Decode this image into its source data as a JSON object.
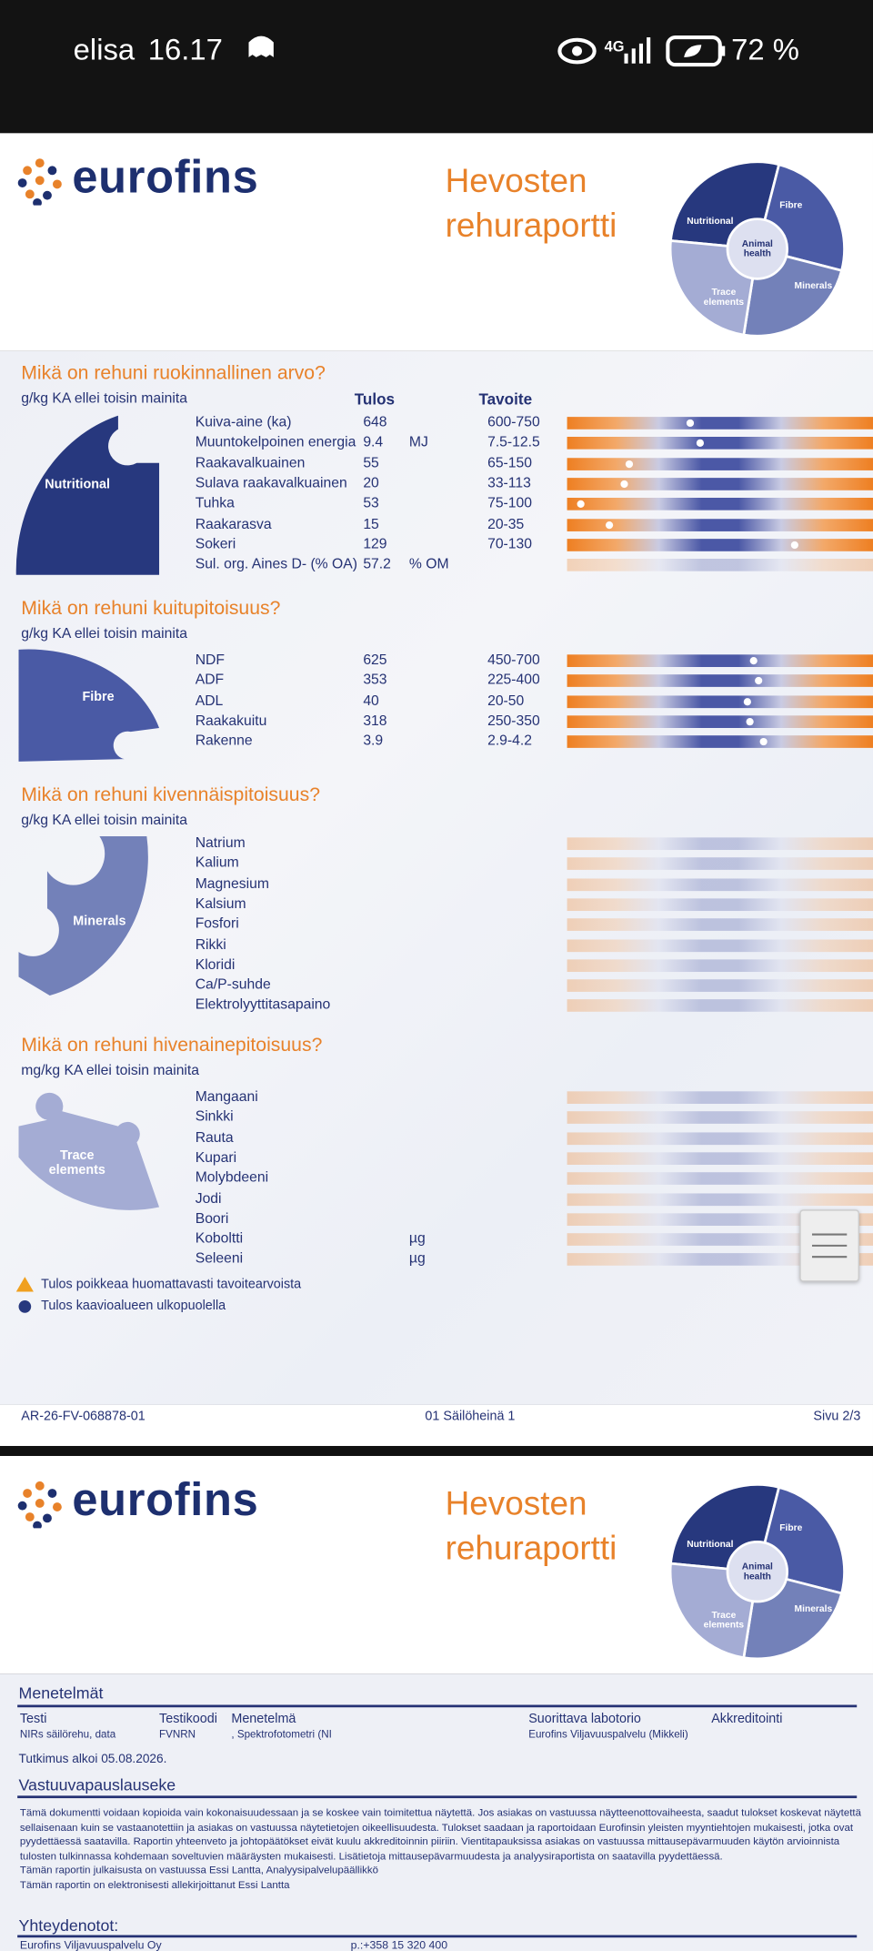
{
  "status_bar": {
    "carrier": "elisa",
    "time": "16.17",
    "network": "4G",
    "battery": "72 %"
  },
  "header": {
    "logo": "eurofins",
    "title_lines": [
      "Hevosten",
      "rehuraportti"
    ],
    "wheel": {
      "nutritional": "Nutritional",
      "fibre": "Fibre",
      "minerals": "Minerals",
      "trace": "Trace elements",
      "center": "Animal health"
    }
  },
  "page1": {
    "columns": {
      "result": "Tulos",
      "target": "Tavoite"
    },
    "sections": [
      {
        "title": "Mikä on rehuni ruokinnallinen arvo?",
        "note": "g/kg KA ellei toisin mainita",
        "segment": "Nutritional",
        "rows": [
          {
            "name": "Kuiva-aine (ka)",
            "result": 648,
            "target": "600-750"
          },
          {
            "name": "Muuntokelpoinen energia",
            "result": 9.4,
            "unit": "MJ",
            "target": "7.5-12.5"
          },
          {
            "name": "Raakavalkuainen",
            "result": 55,
            "target": "65-150"
          },
          {
            "name": "Sulava raakavalkuainen",
            "result": 20,
            "target": "33-113"
          },
          {
            "name": "Tuhka",
            "result": 53,
            "target": "75-100"
          },
          {
            "name": "Raakarasva",
            "result": 15,
            "target": "20-35"
          },
          {
            "name": "Sokeri",
            "result": 129,
            "target": "70-130"
          },
          {
            "name": "Sul. org. Aines D- (% OA)",
            "result": 57.2,
            "unit": "% OM"
          }
        ]
      },
      {
        "title": "Mikä on rehuni kuitupitoisuus?",
        "note": "g/kg KA ellei toisin mainita",
        "segment": "Fibre",
        "rows": [
          {
            "name": "NDF",
            "result": 625,
            "target": "450-700"
          },
          {
            "name": "ADF",
            "result": 353,
            "target": "225-400"
          },
          {
            "name": "ADL",
            "result": 40,
            "target": "20-50"
          },
          {
            "name": "Raakakuitu",
            "result": 318,
            "target": "250-350"
          },
          {
            "name": "Rakenne",
            "result": 3.9,
            "target": "2.9-4.2"
          }
        ]
      },
      {
        "title": "Mikä on rehuni kivennäispitoisuus?",
        "note": "g/kg KA ellei toisin mainita",
        "segment": "Minerals",
        "rows": [
          {
            "name": "Natrium"
          },
          {
            "name": "Kalium"
          },
          {
            "name": "Magnesium"
          },
          {
            "name": "Kalsium"
          },
          {
            "name": "Fosfori"
          },
          {
            "name": "Rikki"
          },
          {
            "name": "Kloridi"
          },
          {
            "name": "Ca/P-suhde"
          },
          {
            "name": "Elektrolyyttitasapaino"
          }
        ]
      },
      {
        "title": "Mikä on rehuni hivenainepitoisuus?",
        "note": "mg/kg KA ellei toisin mainita",
        "segment": "Trace elements",
        "rows": [
          {
            "name": "Mangaani"
          },
          {
            "name": "Sinkki"
          },
          {
            "name": "Rauta"
          },
          {
            "name": "Kupari"
          },
          {
            "name": "Molybdeeni"
          },
          {
            "name": "Jodi"
          },
          {
            "name": "Boori"
          },
          {
            "name": "Koboltti",
            "unit": "µg"
          },
          {
            "name": "Seleeni",
            "unit": "µg"
          }
        ]
      }
    ],
    "legend": [
      "Tulos poikkeaa huomattavasti tavoitearvoista",
      "Tulos kaavioalueen ulkopuolella"
    ],
    "footer": {
      "report_id": "AR-26-FV-068878-01",
      "sample": "01 Säilöheinä 1",
      "page": "Sivu 2/3"
    }
  },
  "page2": {
    "methods": {
      "title": "Menetelmät",
      "headers": [
        "Testi",
        "Testikoodi",
        "Menetelmä",
        "Suorittava labotorio",
        "Akkreditointi"
      ],
      "row": [
        "NIRs säilörehu, data",
        "FVNRN",
        ", Spektrofotometri (NI",
        "Eurofins Viljavuuspalvelu (Mikkeli)"
      ],
      "started": "Tutkimus alkoi 05.08.2026."
    },
    "disclaimer": {
      "title": "Vastuuvapauslauseke",
      "lines": [
        "Tämä dokumentti voidaan kopioida vain kokonaisuudessaan ja se koskee vain toimitettua näytettä. Jos asiakas on vastuussa näytteenottovaiheesta, saadut tulokset koskevat näytettä",
        "sellaisenaan kuin se vastaanotettiin ja asiakas on vastuussa näytetietojen oikeellisuudesta. Tulokset saadaan ja raportoidaan Eurofinsin yleisten myyntiehtojen mukaisesti, jotka ovat",
        "pyydettäessä saatavilla. Raportin yhteenveto ja johtopäätökset eivät kuulu akkreditoinnin piiriin. Vientitapauksissa asiakas on vastuussa mittausepävarmuuden käytön arvioinnista",
        "tulosten tulkinnassa kohdemaan soveltuvien määräysten mukaisesti. Lisätietoja mittausepävarmuudesta ja analyysiraportista on saatavilla pyydettäessä.",
        "Tämän raportin julkaisusta on vastuussa  Essi Lantta, Analyysipalvelupäällikkö",
        "Tämän raportin on elektronisesti allekirjoittanut Essi Lantta"
      ]
    },
    "contacts": {
      "title": "Yhteydenotot:",
      "company": "Eurofins Viljavuuspalvelu Oy",
      "phone": "p.:+358 15 320 400"
    }
  }
}
